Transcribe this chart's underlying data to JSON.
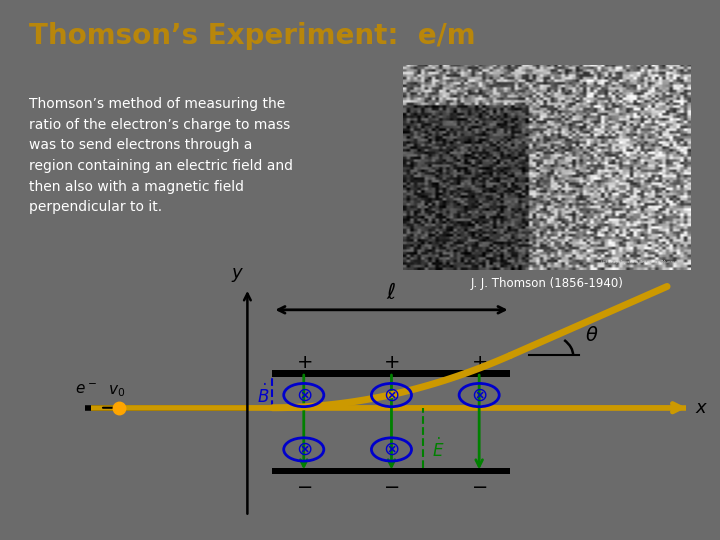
{
  "title": "Thomson’s Experiment:  e/m",
  "title_color": "#B8860B",
  "bg_color": "#6B6B6B",
  "text_color": "#FFFFFF",
  "body_text": "Thomson’s method of measuring the\nratio of the electron’s charge to mass\nwas to send electrons through a\nregion containing an electric field and\nthen also with a magnetic field\nperpendicular to it.",
  "caption": "J. J. Thomson (1856-1940)",
  "diagram_bg": "#FFFFFF",
  "gold_color": "#CC9900",
  "green_color": "#008000",
  "blue_color": "#0000CC",
  "black_color": "#000000",
  "photo_bg": "#555555"
}
